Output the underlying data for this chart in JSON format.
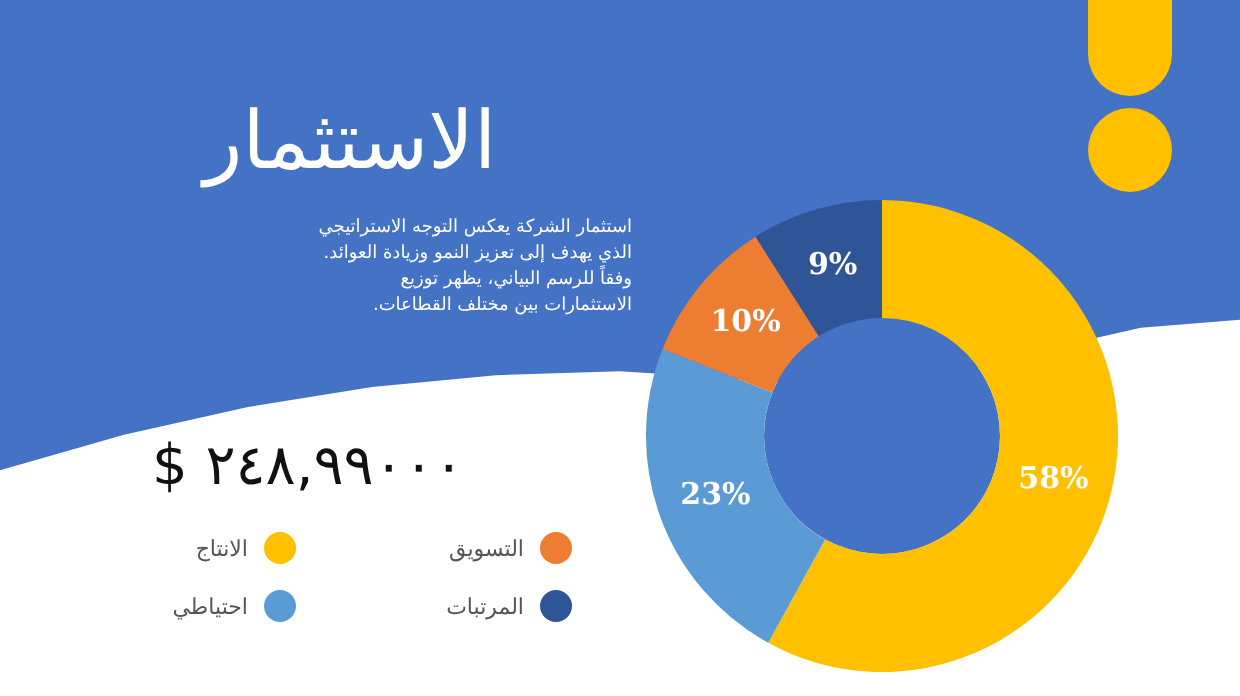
{
  "chart_data": {
    "type": "donut",
    "title": "الاستثمار",
    "subtitle": "استثمار الشركة يعكس التوجه الاستراتيجي الذي يهدف إلى تعزيز النمو وزيادة العوائد. وفقاً للرسم البياني، يظهر توزيع الاستثمارات بين مختلف القطاعات.",
    "annotations": [
      "$ ٢٤٨,٩٩٠٠٠"
    ],
    "categories": [
      "الانتاج",
      "احتياطي",
      "التسويق",
      "المرتبات"
    ],
    "values": [
      58,
      23,
      10,
      9
    ],
    "colors": [
      "#ffc000",
      "#5b9bd5",
      "#ed7d31",
      "#2f5597"
    ],
    "value_labels": [
      "58%",
      "23%",
      "10%",
      "9%"
    ],
    "legend": "bottom left"
  }
}
